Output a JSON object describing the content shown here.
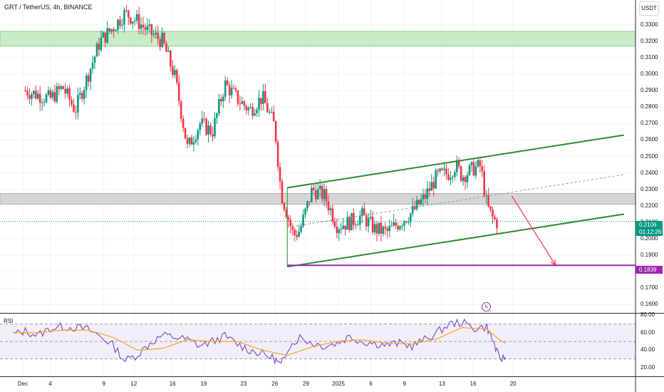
{
  "header": {
    "title": "GRT / TetherUS, 4h, BINANCE",
    "currency": "USDT"
  },
  "rsi_label": "RSI",
  "price_badges": {
    "last_price": "0.2106",
    "countdown": "01:12:26",
    "target": "0.1839"
  },
  "colors": {
    "up_candle": "#089981",
    "down_candle": "#f23645",
    "channel": "#2e8b2e",
    "target_line": "#9c27b0",
    "arrow": "#f23645",
    "rsi_line": "#7e57c2",
    "rsi_ma": "#f5a623",
    "resistance_zone": "#c8ebc8",
    "support_zone": "#d6d6d6"
  },
  "icons": {
    "event_marker": "lightning-icon"
  },
  "chart_data": {
    "type": "candlestick",
    "title": "GRT / TetherUS, 4h, BINANCE",
    "price_axis": {
      "ylim": [
        0.155,
        0.345
      ],
      "ticks": [
        "0.3300",
        "0.3200",
        "0.3100",
        "0.3000",
        "0.2900",
        "0.2800",
        "0.2700",
        "0.2600",
        "0.2500",
        "0.2400",
        "0.2300",
        "0.2200",
        "0.2100",
        "0.2000",
        "0.1900",
        "0.1800",
        "0.1700",
        "0.1600"
      ]
    },
    "x_axis": {
      "labels": [
        "Dec",
        "4",
        "9",
        "12",
        "16",
        "19",
        "23",
        "26",
        "29",
        "2025",
        "6",
        "9",
        "13",
        "16",
        "20"
      ]
    },
    "close_path": [
      [
        1,
        0.29
      ],
      [
        3,
        0.285
      ],
      [
        4,
        0.292
      ],
      [
        5,
        0.278
      ],
      [
        7,
        0.32
      ],
      [
        8,
        0.328
      ],
      [
        9,
        0.337
      ],
      [
        10,
        0.332
      ],
      [
        11,
        0.325
      ],
      [
        12,
        0.32
      ],
      [
        13,
        0.298
      ],
      [
        14,
        0.255
      ],
      [
        15,
        0.27
      ],
      [
        16,
        0.265
      ],
      [
        17,
        0.294
      ],
      [
        18,
        0.285
      ],
      [
        19,
        0.278
      ],
      [
        20,
        0.286
      ],
      [
        21,
        0.268
      ],
      [
        21.5,
        0.228
      ],
      [
        22,
        0.215
      ],
      [
        22.5,
        0.202
      ],
      [
        23,
        0.205
      ],
      [
        24,
        0.23
      ],
      [
        25,
        0.226
      ],
      [
        26,
        0.208
      ],
      [
        27,
        0.21
      ],
      [
        28,
        0.214
      ],
      [
        29,
        0.206
      ],
      [
        30,
        0.204
      ],
      [
        31,
        0.21
      ],
      [
        32,
        0.216
      ],
      [
        33,
        0.225
      ],
      [
        34,
        0.238
      ],
      [
        35,
        0.24
      ],
      [
        35.5,
        0.245
      ],
      [
        36,
        0.238
      ],
      [
        37,
        0.243
      ],
      [
        37.5,
        0.244
      ],
      [
        38,
        0.22
      ],
      [
        38.5,
        0.212
      ],
      [
        38.8,
        0.21
      ]
    ],
    "zones": [
      {
        "type": "resistance",
        "range": [
          0.317,
          0.326
        ]
      },
      {
        "type": "support",
        "range": [
          0.221,
          0.2275
        ]
      }
    ],
    "channel": {
      "upper": [
        [
          22,
          0.231
        ],
        [
          49,
          0.263
        ]
      ],
      "lower": [
        [
          22,
          0.183
        ],
        [
          49,
          0.215
        ]
      ],
      "mid": [
        [
          22,
          0.207
        ],
        [
          49,
          0.239
        ]
      ]
    },
    "target_level": 0.1839,
    "projection_arrow": [
      [
        40,
        0.226
      ],
      [
        43.5,
        0.184
      ]
    ],
    "last_price": 0.2106,
    "rsi": {
      "ylim": [
        10,
        82
      ],
      "ticks": [
        "80.00",
        "60.00",
        "40.00",
        "20.00"
      ],
      "bands": [
        30,
        50,
        70
      ],
      "values": [
        [
          0,
          58
        ],
        [
          1,
          62
        ],
        [
          2,
          57
        ],
        [
          3,
          65
        ],
        [
          4,
          67
        ],
        [
          5,
          66
        ],
        [
          6,
          64
        ],
        [
          7,
          56
        ],
        [
          8,
          46
        ],
        [
          9,
          28
        ],
        [
          10,
          35
        ],
        [
          11,
          48
        ],
        [
          12,
          57
        ],
        [
          13,
          55
        ],
        [
          14,
          52
        ],
        [
          15,
          45
        ],
        [
          16,
          50
        ],
        [
          17,
          56
        ],
        [
          18,
          47
        ],
        [
          19,
          40
        ],
        [
          20,
          36
        ],
        [
          21,
          30
        ],
        [
          21.5,
          22
        ],
        [
          22,
          42
        ],
        [
          23,
          55
        ],
        [
          24,
          48
        ],
        [
          25,
          45
        ],
        [
          26,
          48
        ],
        [
          27,
          56
        ],
        [
          28,
          50
        ],
        [
          29,
          48
        ],
        [
          30,
          46
        ],
        [
          31,
          48
        ],
        [
          32,
          45
        ],
        [
          33,
          52
        ],
        [
          34,
          60
        ],
        [
          35,
          70
        ],
        [
          36,
          72
        ],
        [
          37,
          65
        ],
        [
          38,
          67
        ],
        [
          38.5,
          50
        ],
        [
          39,
          30
        ],
        [
          39.5,
          32
        ]
      ],
      "ma": [
        [
          0,
          60
        ],
        [
          2,
          60
        ],
        [
          4,
          63
        ],
        [
          6,
          63
        ],
        [
          8,
          55
        ],
        [
          10,
          40
        ],
        [
          12,
          42
        ],
        [
          14,
          52
        ],
        [
          16,
          50
        ],
        [
          18,
          50
        ],
        [
          20,
          40
        ],
        [
          22,
          34
        ],
        [
          24,
          44
        ],
        [
          26,
          50
        ],
        [
          28,
          52
        ],
        [
          30,
          48
        ],
        [
          32,
          47
        ],
        [
          34,
          53
        ],
        [
          36,
          66
        ],
        [
          38,
          64
        ],
        [
          39,
          52
        ],
        [
          39.5,
          48
        ]
      ]
    }
  }
}
